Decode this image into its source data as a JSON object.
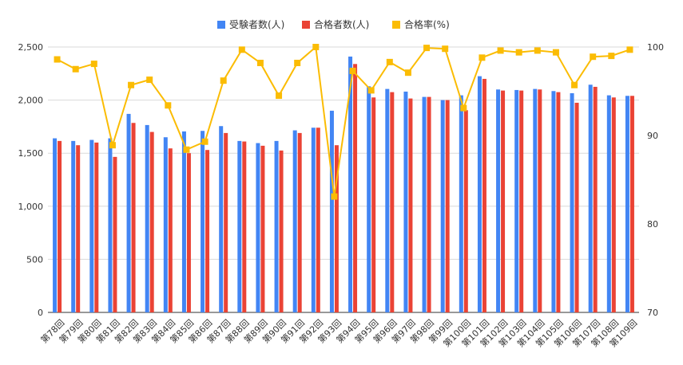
{
  "chart_data": {
    "type": "bar",
    "title": "",
    "legend_position": "top",
    "categories": [
      "第78回",
      "第79回",
      "第80回",
      "第81回",
      "第82回",
      "第83回",
      "第84回",
      "第85回",
      "第86回",
      "第87回",
      "第88回",
      "第89回",
      "第90回",
      "第91回",
      "第92回",
      "第93回",
      "第94回",
      "第95回",
      "第96回",
      "第97回",
      "第98回",
      "第99回",
      "第100回",
      "第101回",
      "第102回",
      "第103回",
      "第104回",
      "第105回",
      "第106回",
      "第107回",
      "第108回",
      "第109回"
    ],
    "series": [
      {
        "name": "受験者数(人)",
        "type": "bar",
        "axis": "left",
        "color": "#4285f4",
        "values": [
          1640,
          1615,
          1625,
          1640,
          1870,
          1765,
          1650,
          1705,
          1710,
          1755,
          1615,
          1595,
          1615,
          1715,
          1740,
          1900,
          2410,
          2130,
          2105,
          2080,
          2030,
          2000,
          2045,
          2225,
          2100,
          2095,
          2105,
          2085,
          2065,
          2145,
          2045,
          2040
        ]
      },
      {
        "name": "合格者数(人)",
        "type": "bar",
        "axis": "left",
        "color": "#ea4335",
        "values": [
          1615,
          1575,
          1600,
          1465,
          1785,
          1700,
          1545,
          1500,
          1530,
          1690,
          1610,
          1570,
          1525,
          1690,
          1740,
          1575,
          2340,
          2025,
          2075,
          2015,
          2030,
          2000,
          1905,
          2200,
          2090,
          2090,
          2100,
          2075,
          1975,
          2125,
          2025,
          2040
        ]
      },
      {
        "name": "合格率(%)",
        "type": "line",
        "axis": "right",
        "color": "#fbbc04",
        "values": [
          98.6,
          97.5,
          98.1,
          88.9,
          95.7,
          96.3,
          93.4,
          88.4,
          89.3,
          96.2,
          99.7,
          98.2,
          94.5,
          98.2,
          100.0,
          83.1,
          97.3,
          95.1,
          98.3,
          97.1,
          99.9,
          99.8,
          93.1,
          98.8,
          99.6,
          99.4,
          99.6,
          99.4,
          95.7,
          98.9,
          99.0,
          99.7
        ]
      }
    ],
    "y_left": {
      "ylim": [
        0,
        2500
      ],
      "ticks": [
        "0",
        "500",
        "1,000",
        "1,500",
        "2,000",
        "2,500"
      ]
    },
    "y_right": {
      "ylim": [
        70,
        100
      ],
      "ticks": [
        "70",
        "80",
        "90",
        "100"
      ]
    },
    "grid": true
  }
}
